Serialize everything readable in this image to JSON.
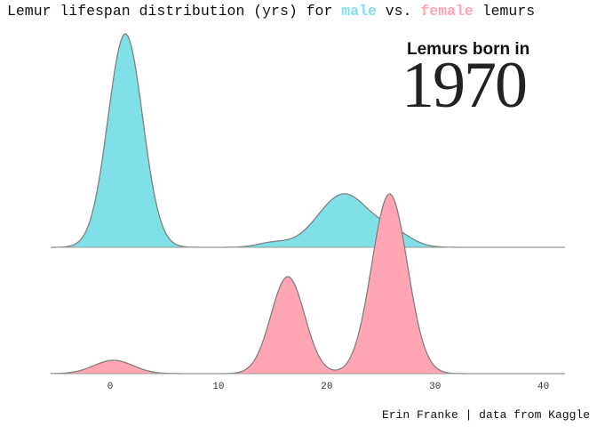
{
  "header": {
    "title_prefix": "Lemur lifespan distribution (yrs) for ",
    "title_male": "male",
    "title_middle": " vs. ",
    "title_female": "female",
    "title_suffix": " lemurs"
  },
  "inset": {
    "subtitle": "Lemurs born in",
    "year": "1970"
  },
  "caption": "Erin Franke | data from Kaggle",
  "colors": {
    "male": "#7fe0e8",
    "female": "#ffa5b4",
    "outline": "#808080",
    "baseline": "#999999"
  },
  "chart_data": {
    "type": "area",
    "subtype": "ridgeline-density",
    "xlabel": "",
    "ylabel": "",
    "xlim": [
      -5.5,
      42
    ],
    "x_ticks": [
      0,
      10,
      20,
      30,
      40
    ],
    "grid": false,
    "series": [
      {
        "name": "male",
        "components": [
          {
            "mean": 1.4,
            "sd": 1.6,
            "height": 240
          },
          {
            "mean": 15.0,
            "sd": 1.4,
            "height": 5
          },
          {
            "mean": 21.6,
            "sd": 2.4,
            "height": 60
          },
          {
            "mean": 26.3,
            "sd": 1.6,
            "height": 13
          }
        ]
      },
      {
        "name": "female",
        "components": [
          {
            "mean": 0.3,
            "sd": 1.8,
            "height": 15
          },
          {
            "mean": 16.4,
            "sd": 1.55,
            "height": 109
          },
          {
            "mean": 25.8,
            "sd": 1.65,
            "height": 202
          }
        ]
      }
    ]
  }
}
